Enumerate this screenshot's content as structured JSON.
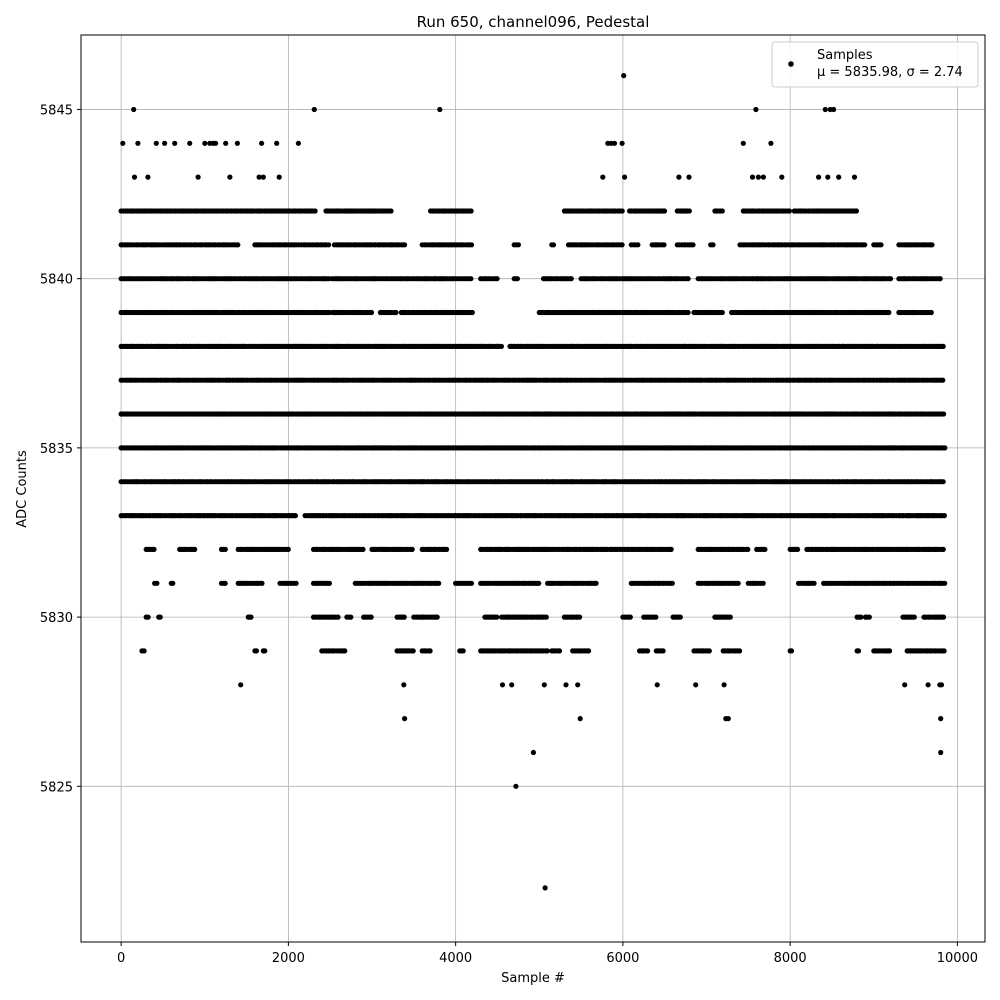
{
  "chart_data": {
    "type": "scatter",
    "title": "Run 650, channel096, Pedestal",
    "xlabel": "Sample #",
    "ylabel": "ADC Counts",
    "xlim": [
      -480,
      10330
    ],
    "ylim": [
      5820.4,
      5847.2
    ],
    "xticks": [
      0,
      2000,
      4000,
      6000,
      8000,
      10000
    ],
    "yticks": [
      5825,
      5830,
      5835,
      5840,
      5845
    ],
    "grid": true,
    "legend_position": "top-right",
    "marker_color": "#000000",
    "series": [
      {
        "name": "Samples",
        "stats_label": "μ = 5835.98, σ = 2.74",
        "bands": [
          {
            "y": 5842,
            "ranges": [
              [
                0,
                2320
              ],
              [
                2450,
                3250
              ],
              [
                3700,
                4200
              ],
              [
                5300,
                6000
              ],
              [
                6080,
                6500
              ],
              [
                6650,
                6800
              ],
              [
                7100,
                7200
              ],
              [
                7440,
                8000
              ],
              [
                8050,
                8800
              ]
            ]
          },
          {
            "y": 5841,
            "ranges": [
              [
                0,
                1400
              ],
              [
                1600,
                2500
              ],
              [
                2550,
                3400
              ],
              [
                3600,
                4200
              ],
              [
                4700,
                4770
              ],
              [
                5150,
                5180
              ],
              [
                5350,
                6000
              ],
              [
                6100,
                6200
              ],
              [
                6350,
                6500
              ],
              [
                6650,
                6850
              ],
              [
                7050,
                7100
              ],
              [
                7400,
                8900
              ],
              [
                9000,
                9100
              ],
              [
                9300,
                9700
              ]
            ]
          },
          {
            "y": 5840,
            "ranges": [
              [
                0,
                2500
              ],
              [
                2520,
                4200
              ],
              [
                4300,
                4500
              ],
              [
                4700,
                4750
              ],
              [
                5050,
                5400
              ],
              [
                5500,
                6800
              ],
              [
                6900,
                9200
              ],
              [
                9300,
                9800
              ]
            ]
          },
          {
            "y": 5839,
            "ranges": [
              [
                0,
                2500
              ],
              [
                2530,
                3000
              ],
              [
                3100,
                3300
              ],
              [
                3350,
                4200
              ],
              [
                5000,
                6800
              ],
              [
                6850,
                7200
              ],
              [
                7300,
                9200
              ],
              [
                9300,
                9700
              ]
            ]
          },
          {
            "y": 5838,
            "ranges": [
              [
                0,
                4500
              ],
              [
                4500,
                4550
              ],
              [
                4650,
                4900
              ],
              [
                4900,
                9850
              ]
            ]
          },
          {
            "y": 5837,
            "ranges": [
              [
                0,
                9850
              ]
            ]
          },
          {
            "y": 5836,
            "ranges": [
              [
                0,
                9850
              ]
            ]
          },
          {
            "y": 5835,
            "ranges": [
              [
                0,
                9850
              ]
            ]
          },
          {
            "y": 5834,
            "ranges": [
              [
                0,
                9850
              ]
            ]
          },
          {
            "y": 5833,
            "ranges": [
              [
                0,
                2100
              ],
              [
                2200,
                9850
              ]
            ]
          },
          {
            "y": 5832,
            "ranges": [
              [
                300,
                400
              ],
              [
                700,
                900
              ],
              [
                1200,
                1250
              ],
              [
                1400,
                2000
              ],
              [
                2300,
                2900
              ],
              [
                3000,
                3500
              ],
              [
                3600,
                3900
              ],
              [
                4300,
                6600
              ],
              [
                6900,
                7500
              ],
              [
                7600,
                7700
              ],
              [
                8000,
                8100
              ],
              [
                8200,
                9850
              ]
            ]
          },
          {
            "y": 5831,
            "ranges": [
              [
                400,
                450
              ],
              [
                600,
                620
              ],
              [
                1200,
                1250
              ],
              [
                1400,
                1700
              ],
              [
                1900,
                2100
              ],
              [
                2300,
                2500
              ],
              [
                2800,
                3800
              ],
              [
                4000,
                4200
              ],
              [
                4300,
                5000
              ],
              [
                5100,
                5700
              ],
              [
                6100,
                6600
              ],
              [
                6900,
                7400
              ],
              [
                7500,
                7700
              ],
              [
                8100,
                8300
              ],
              [
                8400,
                9850
              ]
            ]
          },
          {
            "y": 5830,
            "ranges": [
              [
                300,
                330
              ],
              [
                450,
                480
              ],
              [
                1520,
                1560
              ],
              [
                2300,
                2600
              ],
              [
                2700,
                2750
              ],
              [
                2900,
                3000
              ],
              [
                3300,
                3400
              ],
              [
                3500,
                3800
              ],
              [
                4350,
                4500
              ],
              [
                4550,
                5100
              ],
              [
                5300,
                5500
              ],
              [
                6000,
                6100
              ],
              [
                6250,
                6400
              ],
              [
                6600,
                6700
              ],
              [
                7100,
                7300
              ],
              [
                8800,
                8850
              ],
              [
                8900,
                8950
              ],
              [
                9350,
                9500
              ],
              [
                9600,
                9850
              ]
            ]
          },
          {
            "y": 5829,
            "ranges": [
              [
                250,
                280
              ],
              [
                1600,
                1620
              ],
              [
                1700,
                1720
              ],
              [
                2400,
                2700
              ],
              [
                3300,
                3500
              ],
              [
                3600,
                3700
              ],
              [
                4050,
                4100
              ],
              [
                4300,
                5100
              ],
              [
                5150,
                5250
              ],
              [
                5400,
                5600
              ],
              [
                6200,
                6300
              ],
              [
                6400,
                6500
              ],
              [
                6850,
                7050
              ],
              [
                7200,
                7400
              ],
              [
                8000,
                8020
              ],
              [
                8800,
                8820
              ],
              [
                9000,
                9200
              ],
              [
                9400,
                9850
              ]
            ]
          }
        ],
        "points": [
          [
            20,
            5844
          ],
          [
            150,
            5845
          ],
          [
            160,
            5843
          ],
          [
            200,
            5844
          ],
          [
            320,
            5843
          ],
          [
            420,
            5844
          ],
          [
            520,
            5844
          ],
          [
            640,
            5844
          ],
          [
            820,
            5844
          ],
          [
            920,
            5843
          ],
          [
            1000,
            5844
          ],
          [
            1060,
            5844
          ],
          [
            1100,
            5844
          ],
          [
            1130,
            5844
          ],
          [
            1250,
            5844
          ],
          [
            1300,
            5843
          ],
          [
            1390,
            5844
          ],
          [
            1650,
            5843
          ],
          [
            1680,
            5844
          ],
          [
            1700,
            5843
          ],
          [
            1860,
            5844
          ],
          [
            1890,
            5843
          ],
          [
            2120,
            5844
          ],
          [
            2310,
            5845
          ],
          [
            3810,
            5845
          ],
          [
            5760,
            5843
          ],
          [
            5820,
            5844
          ],
          [
            5860,
            5844
          ],
          [
            5900,
            5844
          ],
          [
            5990,
            5844
          ],
          [
            6010,
            5846
          ],
          [
            6020,
            5843
          ],
          [
            6670,
            5843
          ],
          [
            6790,
            5843
          ],
          [
            7440,
            5844
          ],
          [
            7550,
            5843
          ],
          [
            7590,
            5845
          ],
          [
            7620,
            5843
          ],
          [
            7680,
            5843
          ],
          [
            7770,
            5844
          ],
          [
            7900,
            5843
          ],
          [
            8340,
            5843
          ],
          [
            8420,
            5845
          ],
          [
            8450,
            5843
          ],
          [
            8480,
            5845
          ],
          [
            8520,
            5845
          ],
          [
            8580,
            5843
          ],
          [
            8770,
            5843
          ],
          [
            1430,
            5828
          ],
          [
            3380,
            5828
          ],
          [
            3390,
            5827
          ],
          [
            4560,
            5828
          ],
          [
            4670,
            5828
          ],
          [
            5060,
            5828
          ],
          [
            5320,
            5828
          ],
          [
            5460,
            5828
          ],
          [
            5490,
            5827
          ],
          [
            6410,
            5828
          ],
          [
            6870,
            5828
          ],
          [
            7210,
            5828
          ],
          [
            7230,
            5827
          ],
          [
            7260,
            5827
          ],
          [
            9370,
            5828
          ],
          [
            9650,
            5828
          ],
          [
            9790,
            5828
          ],
          [
            9800,
            5827
          ],
          [
            9810,
            5828
          ],
          [
            4930,
            5826
          ],
          [
            4720,
            5825
          ],
          [
            5070,
            5822
          ],
          [
            9800,
            5826
          ]
        ]
      }
    ]
  }
}
